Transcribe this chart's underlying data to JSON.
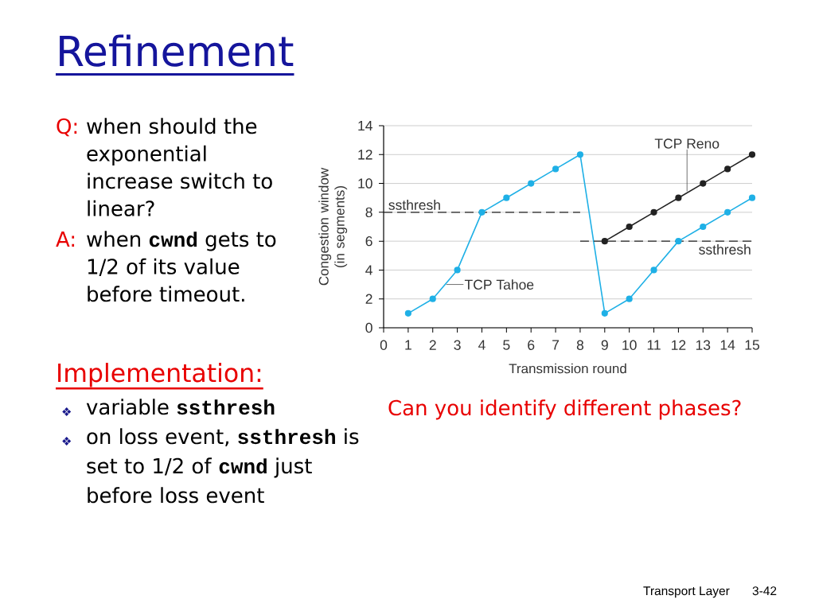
{
  "chart_data": {
    "type": "line",
    "title": "Refinement",
    "xlabel": "Transmission round",
    "ylabel": "Congestion window (in segments)",
    "x": [
      1,
      2,
      3,
      4,
      5,
      6,
      7,
      8,
      9,
      10,
      11,
      12,
      13,
      14,
      15
    ],
    "series": [
      {
        "name": "TCP Tahoe",
        "color": "#1fb0e6",
        "values": [
          1,
          2,
          4,
          8,
          9,
          10,
          11,
          12,
          1,
          2,
          4,
          6,
          7,
          8,
          9
        ]
      },
      {
        "name": "TCP Reno",
        "color": "#222222",
        "x": [
          9,
          10,
          11,
          12,
          13,
          14,
          15
        ],
        "values": [
          6,
          7,
          8,
          9,
          10,
          11,
          12
        ]
      },
      {
        "name": "ssthresh",
        "color": "#222222",
        "x": [
          0,
          8
        ],
        "values": [
          8,
          8
        ],
        "line_style": "dashed",
        "marker": "none"
      },
      {
        "name": "ssthresh",
        "color": "#222222",
        "x": [
          8,
          15
        ],
        "values": [
          6,
          6
        ],
        "line_style": "dashed",
        "marker": "none"
      }
    ],
    "xlim": [
      0,
      15
    ],
    "xticks": [
      0,
      1,
      2,
      3,
      4,
      5,
      6,
      7,
      8,
      9,
      10,
      11,
      12,
      13,
      14,
      15
    ],
    "ylim": [
      0,
      14
    ],
    "yticks": [
      0,
      2,
      4,
      6,
      8,
      10,
      12,
      14
    ],
    "grid": "y",
    "marker": "circle",
    "line_style": "solid",
    "annotations": [
      "Q:",
      "when should the exponential increase switch to linear?",
      "A:",
      "when **cwnd** gets to 1/2 of its value before timeout.",
      "Implementation:",
      "❖",
      "variable **ssthresh**",
      "❖",
      "on loss event, **ssthresh** is set to 1/2 of **cwnd** just before loss event",
      "Can you identify different phases?",
      "Transport Layer",
      "3-42"
    ]
  }
}
